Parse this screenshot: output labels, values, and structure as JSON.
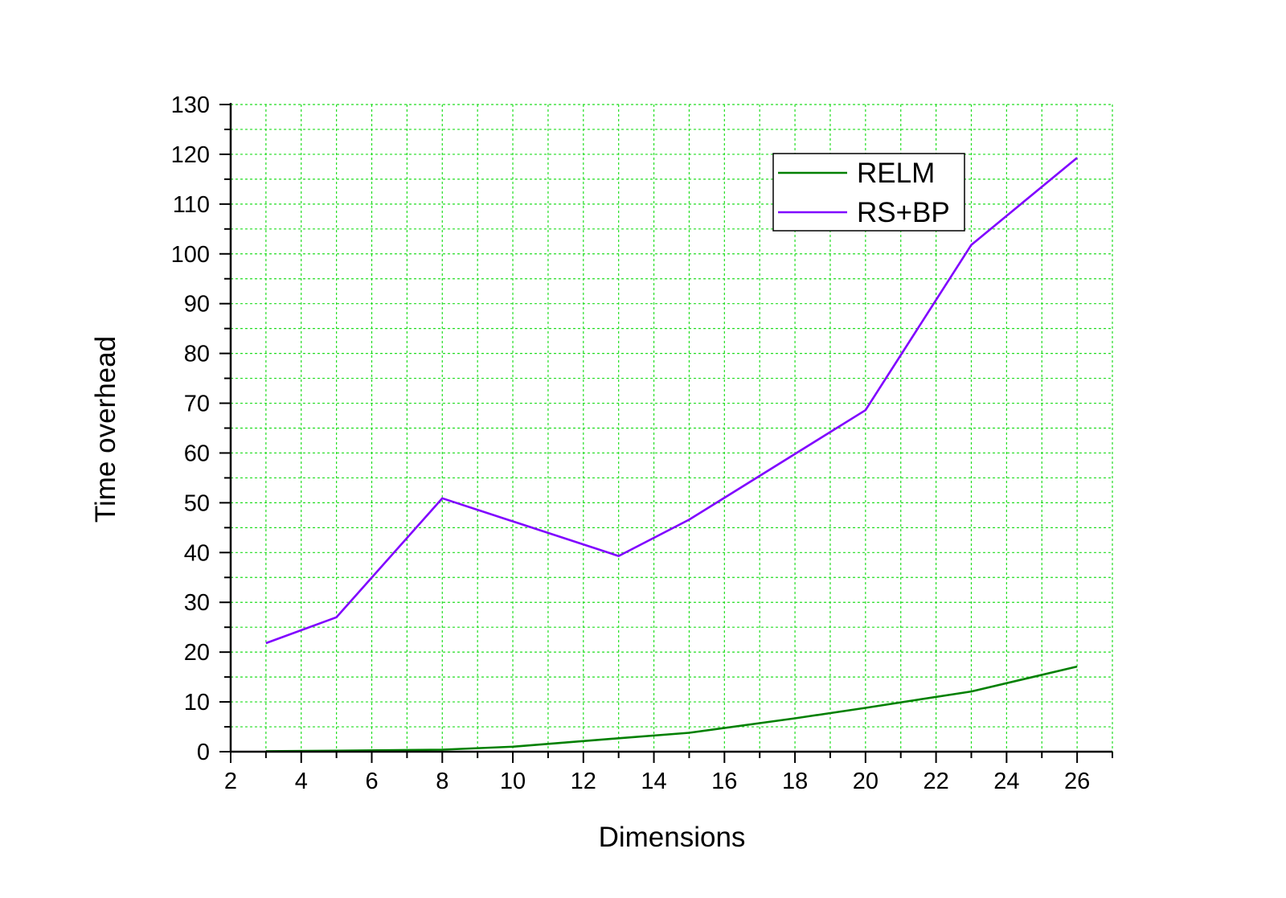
{
  "chart_data": {
    "type": "line",
    "title": "",
    "xlabel": "Dimensions",
    "ylabel": "Time overhead",
    "xlim": [
      2,
      27
    ],
    "ylim": [
      0,
      130
    ],
    "x_ticks": [
      "2",
      "4",
      "6",
      "8",
      "10",
      "12",
      "14",
      "16",
      "18",
      "20",
      "22",
      "24",
      "26"
    ],
    "y_ticks": [
      "0",
      "10",
      "20",
      "30",
      "40",
      "50",
      "60",
      "70",
      "80",
      "90",
      "100",
      "110",
      "120",
      "130"
    ],
    "grid": true,
    "legend_position": "top-right",
    "series": [
      {
        "name": "RELM",
        "color": "#008000",
        "x": [
          3,
          5,
          8,
          10,
          13,
          15,
          18,
          20,
          23,
          26
        ],
        "y": [
          0.1,
          0.2,
          0.4,
          1.0,
          2.7,
          3.8,
          6.7,
          8.8,
          12.1,
          17.1
        ]
      },
      {
        "name": "RS+BP",
        "color": "#8000ff",
        "x": [
          3,
          5,
          8,
          13,
          15,
          20,
          23,
          26
        ],
        "y": [
          21.8,
          27.0,
          50.9,
          39.3,
          46.6,
          68.6,
          101.8,
          119.3
        ]
      }
    ]
  }
}
